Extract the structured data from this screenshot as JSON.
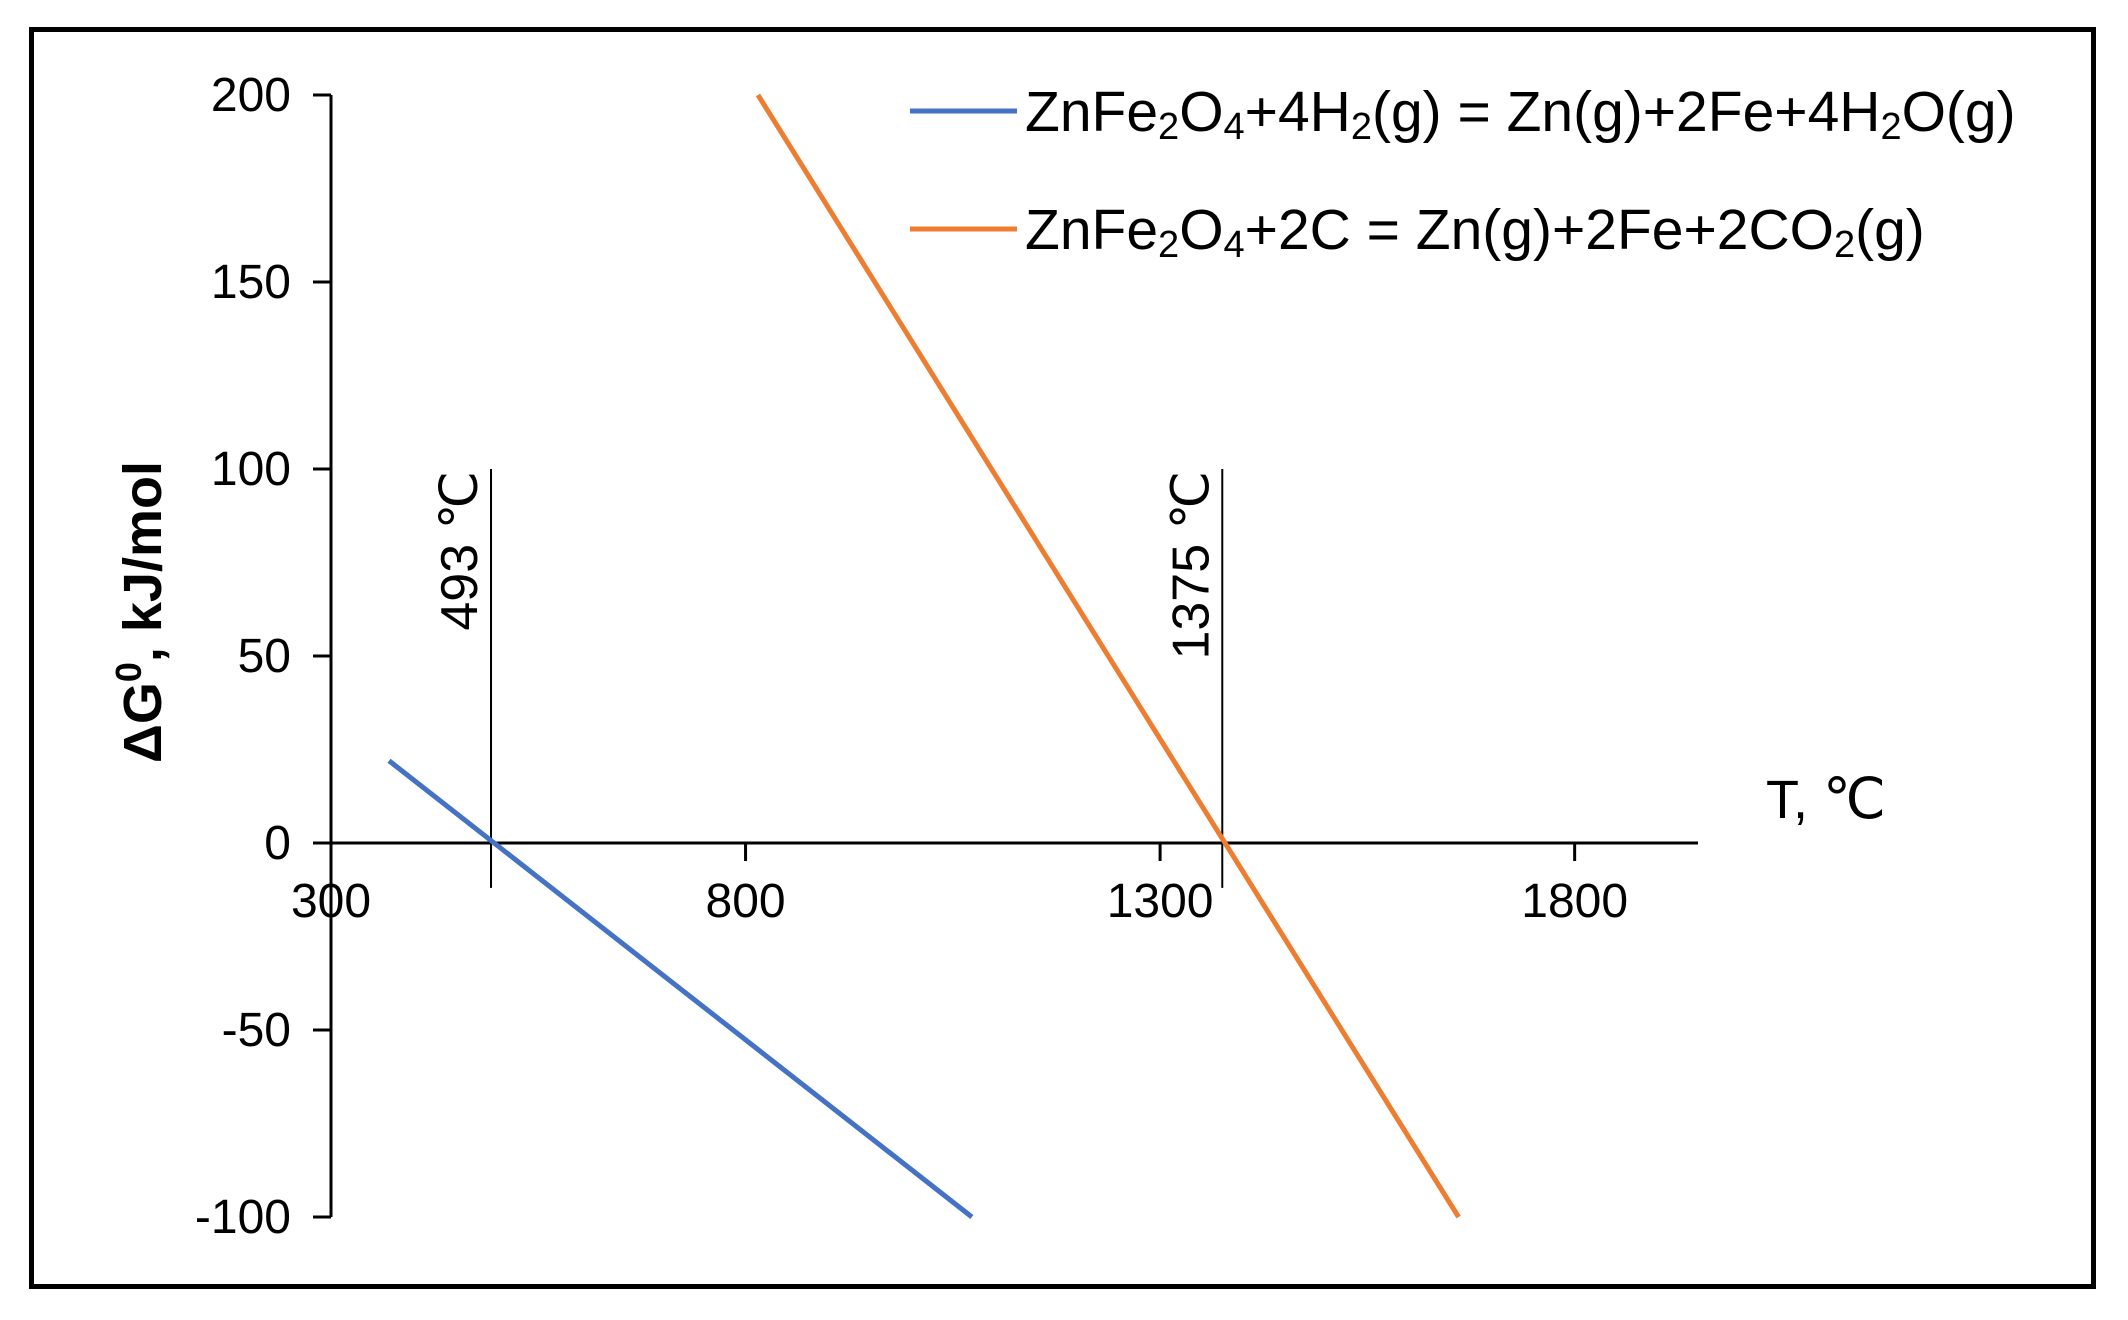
{
  "chart_data": {
    "type": "line",
    "xlabel_main": "T, ",
    "xlabel_unit": "℃",
    "ylabel_parts": {
      "pre": "ΔG",
      "sup": "0",
      "post": ", kJ/mol"
    },
    "xlim": [
      300,
      1900
    ],
    "ylim": [
      -100,
      200
    ],
    "x_ticks": [
      300,
      800,
      1300,
      1800
    ],
    "x_tick_labels": [
      "300",
      "800",
      "1300",
      "1800"
    ],
    "y_ticks": [
      -100,
      -50,
      0,
      50,
      100,
      150,
      200
    ],
    "y_tick_labels": [
      "-100",
      "-50",
      "0",
      "50",
      "100",
      "150",
      "200"
    ],
    "grid": false,
    "legend_position": "top-right",
    "series": [
      {
        "name": "ZnFe2O4+4H2(g) = Zn(g)+2Fe+4H2O(g)",
        "name_parts": [
          [
            "ZnFe",
            ""
          ],
          [
            "2",
            "sub"
          ],
          [
            "O",
            ""
          ],
          [
            "4",
            "sub"
          ],
          [
            "+4H",
            ""
          ],
          [
            "2",
            "sub"
          ],
          [
            "(g) = Zn(g)+2Fe+4H",
            ""
          ],
          [
            "2",
            "sub"
          ],
          [
            "O(g)",
            ""
          ]
        ],
        "color": "#4472C4",
        "x": [
          370,
          1073
        ],
        "y": [
          22,
          -100
        ]
      },
      {
        "name": "ZnFe2O4+2C = Zn(g)+2Fe+2CO2(g)",
        "name_parts": [
          [
            "ZnFe",
            ""
          ],
          [
            "2",
            "sub"
          ],
          [
            "O",
            ""
          ],
          [
            "4",
            "sub"
          ],
          [
            "+2C = Zn(g)+2Fe+2CO",
            ""
          ],
          [
            "2",
            "sub"
          ],
          [
            "(g)",
            ""
          ]
        ],
        "color": "#ED7D31",
        "x": [
          815,
          1660
        ],
        "y": [
          200,
          -100
        ]
      }
    ],
    "vertical_markers": [
      {
        "x": 493,
        "y_top": 100,
        "y_bottom": -12,
        "label_value": "493 ",
        "label_unit": "℃"
      },
      {
        "x": 1375,
        "y_top": 100,
        "y_bottom": -12,
        "label_value": "1375 ",
        "label_unit": "℃"
      }
    ]
  }
}
